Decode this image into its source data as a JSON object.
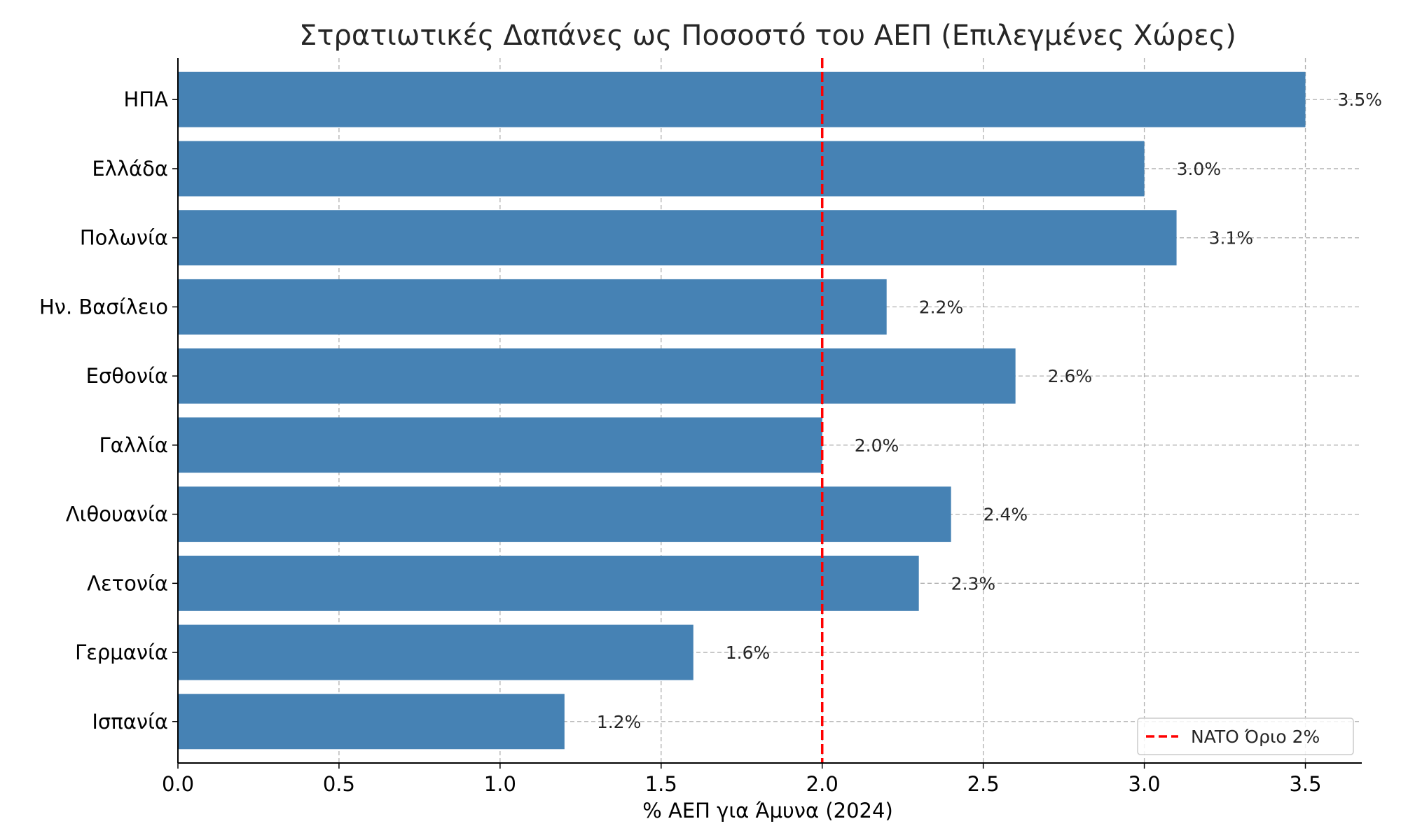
{
  "chart_data": {
    "type": "bar",
    "orientation": "horizontal",
    "title": "Στρατιωτικές Δαπάνες ως Ποσοστό του ΑΕΠ (Επιλεγμένες Χώρες)",
    "xlabel": "% ΑΕΠ για Άμυνα (2024)",
    "ylabel": "",
    "categories": [
      "ΗΠΑ",
      "Ελλάδα",
      "Πολωνία",
      "Ην. Βασίλειο",
      "Εσθονία",
      "Γαλλία",
      "Λιθουανία",
      "Λετονία",
      "Γερμανία",
      "Ισπανία"
    ],
    "values": [
      3.5,
      3.0,
      3.1,
      2.2,
      2.6,
      2.0,
      2.4,
      2.3,
      1.6,
      1.2
    ],
    "data_labels": [
      "3.5%",
      "3.0%",
      "3.1%",
      "2.2%",
      "2.6%",
      "2.0%",
      "2.4%",
      "2.3%",
      "1.6%",
      "1.2%"
    ],
    "xlim": [
      0,
      3.675
    ],
    "xticks": [
      0.0,
      0.5,
      1.0,
      1.5,
      2.0,
      2.5,
      3.0,
      3.5
    ],
    "xtick_labels": [
      "0.0",
      "0.5",
      "1.0",
      "1.5",
      "2.0",
      "2.5",
      "3.0",
      "3.5"
    ],
    "reference_line": {
      "value": 2.0,
      "label": "NATO Όριο 2%",
      "style": "dashed",
      "color": "#ff0000"
    },
    "bar_color": "#4682b4",
    "grid": true,
    "legend": {
      "position": "bottom-right",
      "entries": [
        "NATO Όριο 2%"
      ]
    }
  }
}
